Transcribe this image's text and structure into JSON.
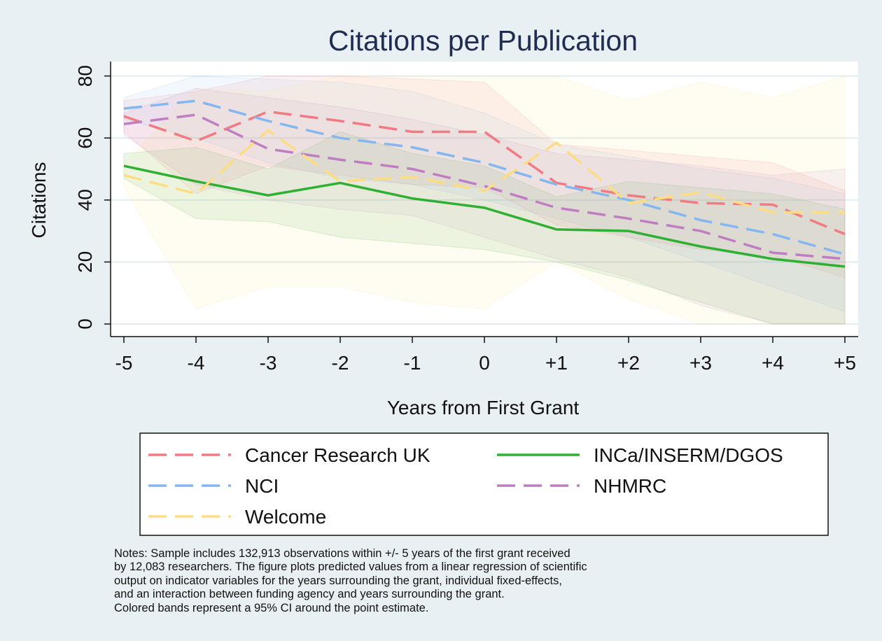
{
  "chart_data": {
    "type": "line",
    "title": "Citations per Publication",
    "xlabel": "Years from First Grant",
    "ylabel": "Citations",
    "x": [
      "-5",
      "-4",
      "-3",
      "-2",
      "-1",
      "0",
      "+1",
      "+2",
      "+3",
      "+4",
      "+5"
    ],
    "ylim": [
      0,
      80
    ],
    "yticks": [
      0,
      20,
      40,
      60,
      80
    ],
    "grid": true,
    "legend_position": "bottom",
    "series": [
      {
        "name": "Cancer Research UK",
        "color": "#f27a82",
        "dash": true,
        "values": [
          67,
          59,
          68.5,
          65.5,
          62,
          62,
          45.5,
          41.5,
          39,
          38.5,
          29
        ],
        "ci_lower": [
          62,
          42,
          51,
          48,
          45,
          44,
          32,
          28,
          24,
          22,
          15
        ],
        "ci_upper": [
          72,
          75,
          80,
          80,
          79,
          78,
          58,
          56,
          54,
          52,
          43
        ]
      },
      {
        "name": "INCa/INSERM/DGOS",
        "color": "#2fb033",
        "dash": false,
        "values": [
          51,
          46,
          41.5,
          45.5,
          40.5,
          37.5,
          30.5,
          30,
          25,
          21,
          18.5
        ],
        "ci_lower": [
          47,
          34,
          33,
          28,
          26,
          24,
          20,
          14,
          7,
          0,
          0
        ],
        "ci_upper": [
          55,
          57,
          50,
          62,
          55,
          51,
          41,
          46,
          44,
          42,
          37
        ]
      },
      {
        "name": "NCI",
        "color": "#84b7ef",
        "dash": true,
        "values": [
          69.5,
          72,
          65.5,
          60,
          57,
          52,
          45,
          40,
          33.5,
          29,
          22.5
        ],
        "ci_lower": [
          66,
          60,
          52,
          47,
          45,
          40,
          34,
          28,
          20,
          12,
          4
        ],
        "ci_upper": [
          73,
          80,
          79,
          78,
          75,
          68,
          58,
          54,
          50,
          47,
          42
        ]
      },
      {
        "name": "NHMRC",
        "color": "#be7ec1",
        "dash": true,
        "values": [
          64.5,
          67.5,
          56.5,
          53,
          50,
          44.5,
          37.5,
          34,
          30,
          23,
          21
        ],
        "ci_lower": [
          61,
          45,
          40,
          37,
          35,
          28,
          21,
          15,
          6,
          0,
          0
        ],
        "ci_upper": [
          68,
          76,
          73,
          70,
          66,
          61,
          55,
          53,
          51,
          48,
          50
        ]
      },
      {
        "name": "Welcome",
        "color": "#fddd84",
        "dash": true,
        "values": [
          48,
          42,
          62.5,
          46,
          47.5,
          43,
          58.5,
          39,
          42.5,
          36,
          36
        ],
        "ci_lower": [
          44,
          5,
          12,
          12,
          7,
          5,
          20,
          8,
          0,
          0,
          0
        ],
        "ci_upper": [
          52,
          76,
          75,
          80,
          80,
          80,
          80,
          72,
          78,
          73,
          80
        ]
      }
    ],
    "legend_order": [
      "Cancer Research UK",
      "INCa/INSERM/DGOS",
      "NCI",
      "NHMRC",
      "Welcome"
    ]
  },
  "notes": [
    "Notes: Sample includes 132,913 observations within +/- 5 years of the first grant received",
    "by 12,083 researchers. The figure plots predicted values from a linear regression of scientific",
    "output on indicator variables for the years surrounding the grant, individual fixed-effects,",
    "and an interaction between funding agency and years surrounding the grant.",
    "Colored bands represent a 95% CI around the point estimate."
  ]
}
